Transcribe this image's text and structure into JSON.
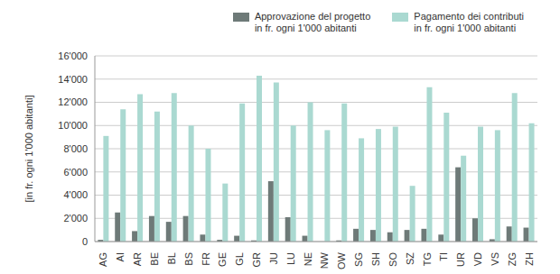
{
  "chart_data": {
    "type": "bar",
    "y_label": "[in fr. ogni 1'000 abitanti]",
    "categories": [
      "AG",
      "AI",
      "AR",
      "BE",
      "BL",
      "BS",
      "FR",
      "GE",
      "GL",
      "GR",
      "JU",
      "LU",
      "NE",
      "NW",
      "OW",
      "SG",
      "SH",
      "SO",
      "SZ",
      "TG",
      "TI",
      "UR",
      "VD",
      "VS",
      "ZG",
      "ZH"
    ],
    "series": [
      {
        "name": "Approvazione del progetto\nin fr. ogni 1'000 abitanti",
        "color": "#6e7a78",
        "values": [
          150,
          2500,
          900,
          2200,
          1700,
          2200,
          600,
          150,
          500,
          100,
          5200,
          2100,
          500,
          0,
          100,
          1100,
          1000,
          800,
          1000,
          1100,
          600,
          6400,
          2000,
          200,
          1300,
          1200
        ]
      },
      {
        "name": "Pagamento dei contributi\nin fr. ogni 1'000 abitanti",
        "color": "#aad9d1",
        "values": [
          9100,
          11400,
          12700,
          11200,
          12800,
          10000,
          8000,
          5000,
          11900,
          14300,
          13700,
          10000,
          12000,
          9600,
          11900,
          8900,
          9700,
          9900,
          4800,
          13300,
          11100,
          7400,
          9900,
          9600,
          12800,
          10200
        ]
      }
    ],
    "ylim": [
      0,
      16000
    ],
    "yticks": [
      0,
      {
        "value": 2000,
        "label": "2'000"
      },
      {
        "value": 4000,
        "label": "4'000"
      },
      {
        "value": 6000,
        "label": "6'000"
      },
      {
        "value": 8000,
        "label": "8'000"
      },
      {
        "value": 10000,
        "label": "10'000"
      },
      {
        "value": 12000,
        "label": "12'000"
      },
      {
        "value": 14000,
        "label": "14'000"
      },
      {
        "value": 16000,
        "label": "16'000"
      }
    ],
    "grid": true,
    "legend": "top right"
  }
}
